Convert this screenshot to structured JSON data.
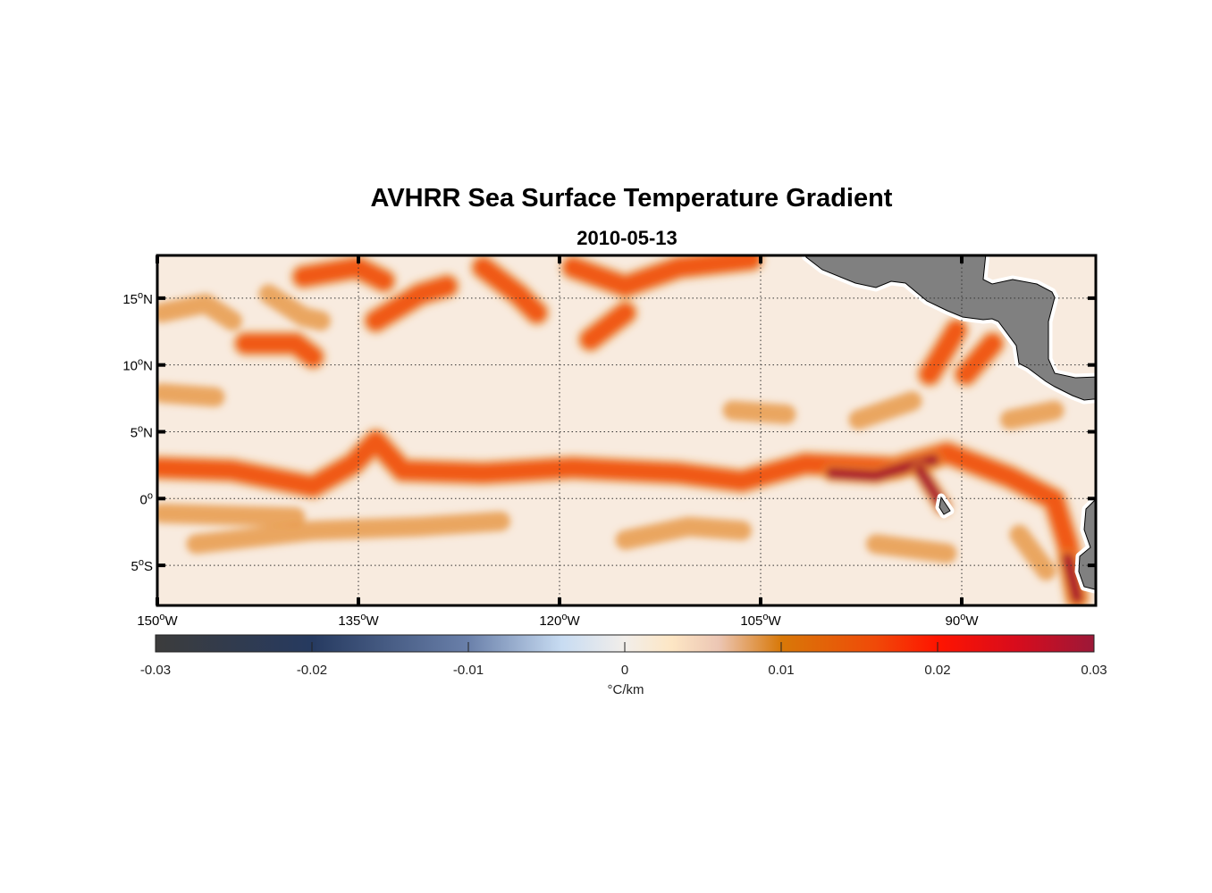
{
  "chart_data": {
    "type": "heatmap",
    "title": "AVHRR Sea Surface Temperature Gradient",
    "subtitle": "2010-05-13",
    "lon_range": [
      -150,
      -80
    ],
    "lat_range": [
      -8,
      18.2
    ],
    "x_ticks": [
      {
        "value": -150,
        "label": "150",
        "deg": "o",
        "hemi": "W"
      },
      {
        "value": -135,
        "label": "135",
        "deg": "o",
        "hemi": "W"
      },
      {
        "value": -120,
        "label": "120",
        "deg": "o",
        "hemi": "W"
      },
      {
        "value": -105,
        "label": "105",
        "deg": "o",
        "hemi": "W"
      },
      {
        "value": -90,
        "label": "90",
        "deg": "o",
        "hemi": "W"
      }
    ],
    "y_ticks": [
      {
        "value": 15,
        "label": "15",
        "deg": "o",
        "hemi": "N"
      },
      {
        "value": 10,
        "label": "10",
        "deg": "o",
        "hemi": "N"
      },
      {
        "value": 5,
        "label": "5",
        "deg": "o",
        "hemi": "N"
      },
      {
        "value": 0,
        "label": "0",
        "deg": "o",
        "hemi": ""
      },
      {
        "value": -5,
        "label": "5",
        "deg": "o",
        "hemi": "S"
      }
    ],
    "grid": "dotted",
    "colorbar": {
      "range": [
        -0.03,
        0.03
      ],
      "ticks": [
        -0.03,
        -0.02,
        -0.01,
        0,
        0.01,
        0.02,
        0.03
      ],
      "tick_labels": [
        "-0.03",
        "-0.02",
        "-0.01",
        "0",
        "0.01",
        "0.02",
        "0.03"
      ],
      "label": "°C/km",
      "stops": [
        {
          "v": -0.03,
          "c": "#3c3c3c"
        },
        {
          "v": -0.02,
          "c": "#263a60"
        },
        {
          "v": -0.01,
          "c": "#6a80aa"
        },
        {
          "v": -0.004,
          "c": "#c8dcf2"
        },
        {
          "v": 0,
          "c": "#f2eeea"
        },
        {
          "v": 0.003,
          "c": "#fde6c4"
        },
        {
          "v": 0.006,
          "c": "#ecc6b4"
        },
        {
          "v": 0.01,
          "c": "#d87808"
        },
        {
          "v": 0.016,
          "c": "#f04a08"
        },
        {
          "v": 0.02,
          "c": "#ff1400"
        },
        {
          "v": 0.025,
          "c": "#d80c1c"
        },
        {
          "v": 0.03,
          "c": "#9c1838"
        }
      ]
    },
    "background_value": 0.002,
    "land_color": "#808080",
    "fronts": [
      {
        "level": 2,
        "pts": [
          [
            -149.9,
            2.3
          ],
          [
            -144.4,
            2.1
          ],
          [
            -138.4,
            0.9
          ],
          [
            -135.4,
            2.6
          ],
          [
            -133.7,
            4.3
          ],
          [
            -131.7,
            2.1
          ],
          [
            -125.7,
            1.9
          ],
          [
            -119,
            2.3
          ],
          [
            -111.1,
            1.9
          ],
          [
            -106.4,
            1.3
          ],
          [
            -101.7,
            2.6
          ],
          [
            -95,
            2.3
          ],
          [
            -91.1,
            3.4
          ],
          [
            -86.4,
            1.6
          ],
          [
            -83.1,
            -0.1
          ],
          [
            -82.1,
            -3.4
          ],
          [
            -81.4,
            -7.4
          ]
        ]
      },
      {
        "level": 3,
        "pts": [
          [
            -99.7,
            1.9
          ],
          [
            -96.4,
            1.7
          ],
          [
            -93.7,
            2.5
          ],
          [
            -92.1,
            2.9
          ]
        ]
      },
      {
        "level": 3,
        "pts": [
          [
            -93.1,
            2.1
          ],
          [
            -91.4,
            -0.6
          ]
        ]
      },
      {
        "level": 3,
        "pts": [
          [
            -82.1,
            -4.5
          ],
          [
            -81.4,
            -7.4
          ]
        ]
      },
      {
        "level": 1,
        "pts": [
          [
            -147.1,
            -3.4
          ],
          [
            -138.4,
            -2.4
          ],
          [
            -130.4,
            -2.1
          ],
          [
            -124.4,
            -1.7
          ]
        ]
      },
      {
        "level": 1,
        "pts": [
          [
            -115.1,
            -3.1
          ],
          [
            -110.4,
            -2.1
          ],
          [
            -106.4,
            -2.4
          ]
        ]
      },
      {
        "level": 1,
        "pts": [
          [
            -149.7,
            -1.1
          ],
          [
            -139.7,
            -1.4
          ]
        ]
      },
      {
        "level": 1,
        "pts": [
          [
            -149.7,
            13.9
          ],
          [
            -146.4,
            14.6
          ],
          [
            -144.4,
            13.3
          ]
        ]
      },
      {
        "level": 2,
        "pts": [
          [
            -143.4,
            11.6
          ],
          [
            -139.7,
            11.6
          ],
          [
            -138.4,
            10.6
          ]
        ]
      },
      {
        "level": 1,
        "pts": [
          [
            -141.7,
            15.3
          ],
          [
            -139.1,
            13.6
          ],
          [
            -137.8,
            13.3
          ]
        ]
      },
      {
        "level": 2,
        "pts": [
          [
            -139.1,
            16.6
          ],
          [
            -135.1,
            17.3
          ],
          [
            -133.1,
            16.3
          ]
        ]
      },
      {
        "level": 2,
        "pts": [
          [
            -133.7,
            13.3
          ],
          [
            -130.4,
            15.3
          ],
          [
            -128.4,
            15.9
          ]
        ]
      },
      {
        "level": 2,
        "pts": [
          [
            -125.7,
            17.3
          ],
          [
            -123.1,
            15.3
          ],
          [
            -121.7,
            13.9
          ]
        ]
      },
      {
        "level": 2,
        "pts": [
          [
            -119,
            17.3
          ],
          [
            -115.1,
            15.9
          ],
          [
            -111.1,
            17.3
          ],
          [
            -105.7,
            17.9
          ]
        ]
      },
      {
        "level": 2,
        "pts": [
          [
            -117.7,
            11.9
          ],
          [
            -115.1,
            13.9
          ]
        ]
      },
      {
        "level": 2,
        "pts": [
          [
            -92.4,
            9.3
          ],
          [
            -90.4,
            12.6
          ]
        ]
      },
      {
        "level": 2,
        "pts": [
          [
            -89.7,
            9.3
          ],
          [
            -87.7,
            11.6
          ]
        ]
      },
      {
        "level": 1,
        "pts": [
          [
            -149.7,
            7.9
          ],
          [
            -145.7,
            7.6
          ]
        ]
      },
      {
        "level": 1,
        "pts": [
          [
            -107.1,
            6.6
          ],
          [
            -103.1,
            6.3
          ]
        ]
      },
      {
        "level": 1,
        "pts": [
          [
            -97.7,
            5.9
          ],
          [
            -93.7,
            7.3
          ]
        ]
      },
      {
        "level": 1,
        "pts": [
          [
            -86.4,
            5.9
          ],
          [
            -83.1,
            6.6
          ]
        ]
      },
      {
        "level": 1,
        "pts": [
          [
            -85.7,
            -2.7
          ],
          [
            -83.7,
            -5.4
          ]
        ]
      },
      {
        "level": 1,
        "pts": [
          [
            -96.4,
            -3.4
          ],
          [
            -91.1,
            -4.1
          ]
        ]
      }
    ]
  }
}
